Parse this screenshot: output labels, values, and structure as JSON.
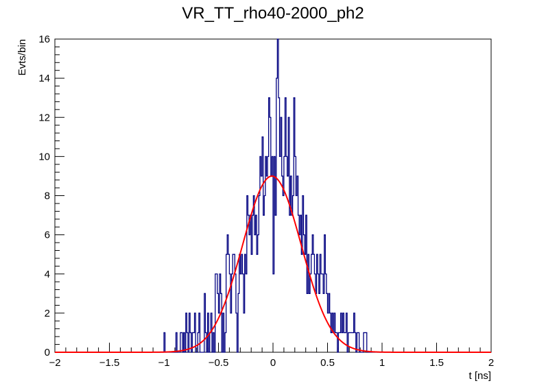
{
  "chart_data": {
    "type": "histogram",
    "title": "VR_TT_rho40-2000_ph2",
    "xlabel": "t [ns]",
    "ylabel": "Evts/bin",
    "xlim": [
      -2,
      2
    ],
    "ylim": [
      0,
      16
    ],
    "x_ticks": [
      -2,
      -1.5,
      -1,
      -0.5,
      0,
      0.5,
      1,
      1.5,
      2
    ],
    "x_tick_labels": [
      "−2",
      "−1.5",
      "−1",
      "−0.5",
      "0",
      "0.5",
      "1",
      "1.5",
      "2"
    ],
    "y_ticks": [
      0,
      2,
      4,
      6,
      8,
      10,
      12,
      14,
      16
    ],
    "y_tick_labels": [
      "0",
      "2",
      "4",
      "6",
      "8",
      "10",
      "12",
      "14",
      "16"
    ],
    "bin_width": 0.01,
    "histogram": {
      "name": "data",
      "color": "#000080",
      "bins": [
        [
          -1.0,
          1
        ],
        [
          -0.89,
          1
        ],
        [
          -0.85,
          1
        ],
        [
          -0.84,
          1
        ],
        [
          -0.82,
          1
        ],
        [
          -0.8,
          2
        ],
        [
          -0.79,
          1
        ],
        [
          -0.77,
          2
        ],
        [
          -0.76,
          1
        ],
        [
          -0.74,
          1
        ],
        [
          -0.73,
          1
        ],
        [
          -0.72,
          2
        ],
        [
          -0.69,
          1
        ],
        [
          -0.68,
          2
        ],
        [
          -0.63,
          3
        ],
        [
          -0.62,
          1
        ],
        [
          -0.6,
          2
        ],
        [
          -0.58,
          1
        ],
        [
          -0.57,
          2
        ],
        [
          -0.55,
          1
        ],
        [
          -0.53,
          4
        ],
        [
          -0.52,
          4
        ],
        [
          -0.51,
          3
        ],
        [
          -0.5,
          2
        ],
        [
          -0.49,
          4
        ],
        [
          -0.48,
          3
        ],
        [
          -0.46,
          2
        ],
        [
          -0.44,
          1
        ],
        [
          -0.43,
          5
        ],
        [
          -0.42,
          6
        ],
        [
          -0.41,
          5
        ],
        [
          -0.4,
          4
        ],
        [
          -0.39,
          2
        ],
        [
          -0.38,
          4
        ],
        [
          -0.37,
          5
        ],
        [
          -0.36,
          5
        ],
        [
          -0.35,
          4
        ],
        [
          -0.34,
          2
        ],
        [
          -0.33,
          0
        ],
        [
          -0.32,
          3
        ],
        [
          -0.31,
          5
        ],
        [
          -0.3,
          4
        ],
        [
          -0.29,
          5
        ],
        [
          -0.28,
          4
        ],
        [
          -0.27,
          2
        ],
        [
          -0.26,
          5
        ],
        [
          -0.25,
          4
        ],
        [
          -0.24,
          8
        ],
        [
          -0.23,
          7
        ],
        [
          -0.22,
          6
        ],
        [
          -0.21,
          7
        ],
        [
          -0.2,
          5
        ],
        [
          -0.19,
          7
        ],
        [
          -0.18,
          8
        ],
        [
          -0.17,
          6
        ],
        [
          -0.16,
          7
        ],
        [
          -0.15,
          5
        ],
        [
          -0.14,
          6
        ],
        [
          -0.13,
          8
        ],
        [
          -0.12,
          10
        ],
        [
          -0.11,
          9
        ],
        [
          -0.1,
          11
        ],
        [
          -0.09,
          7
        ],
        [
          -0.08,
          8
        ],
        [
          -0.07,
          10
        ],
        [
          -0.06,
          9
        ],
        [
          -0.05,
          10
        ],
        [
          -0.04,
          13
        ],
        [
          -0.03,
          12
        ],
        [
          -0.02,
          9
        ],
        [
          -0.01,
          10
        ],
        [
          0.0,
          4
        ],
        [
          0.01,
          10
        ],
        [
          0.02,
          7
        ],
        [
          0.03,
          14
        ],
        [
          0.04,
          16
        ],
        [
          0.05,
          13
        ],
        [
          0.06,
          10
        ],
        [
          0.07,
          12
        ],
        [
          0.08,
          9
        ],
        [
          0.09,
          8
        ],
        [
          0.1,
          10
        ],
        [
          0.11,
          13
        ],
        [
          0.12,
          10
        ],
        [
          0.13,
          9
        ],
        [
          0.14,
          12
        ],
        [
          0.15,
          7
        ],
        [
          0.16,
          9
        ],
        [
          0.17,
          7
        ],
        [
          0.18,
          8
        ],
        [
          0.19,
          13
        ],
        [
          0.2,
          10
        ],
        [
          0.21,
          8
        ],
        [
          0.22,
          9
        ],
        [
          0.23,
          7
        ],
        [
          0.24,
          6
        ],
        [
          0.25,
          7
        ],
        [
          0.26,
          5
        ],
        [
          0.27,
          8
        ],
        [
          0.28,
          6
        ],
        [
          0.29,
          5
        ],
        [
          0.3,
          7
        ],
        [
          0.31,
          3
        ],
        [
          0.32,
          5
        ],
        [
          0.33,
          3
        ],
        [
          0.34,
          4
        ],
        [
          0.35,
          5
        ],
        [
          0.36,
          6
        ],
        [
          0.37,
          5
        ],
        [
          0.38,
          4
        ],
        [
          0.39,
          3
        ],
        [
          0.4,
          5
        ],
        [
          0.41,
          4
        ],
        [
          0.42,
          3
        ],
        [
          0.43,
          5
        ],
        [
          0.44,
          4
        ],
        [
          0.45,
          4
        ],
        [
          0.46,
          3
        ],
        [
          0.47,
          6
        ],
        [
          0.48,
          4
        ],
        [
          0.49,
          3
        ],
        [
          0.5,
          2
        ],
        [
          0.51,
          3
        ],
        [
          0.52,
          2
        ],
        [
          0.53,
          1
        ],
        [
          0.54,
          2
        ],
        [
          0.55,
          1
        ],
        [
          0.56,
          2
        ],
        [
          0.57,
          1
        ],
        [
          0.58,
          1
        ],
        [
          0.59,
          0
        ],
        [
          0.6,
          1
        ],
        [
          0.61,
          1
        ],
        [
          0.62,
          2
        ],
        [
          0.63,
          1
        ],
        [
          0.64,
          2
        ],
        [
          0.65,
          1
        ],
        [
          0.66,
          1
        ],
        [
          0.67,
          2
        ],
        [
          0.68,
          0
        ],
        [
          0.69,
          1
        ],
        [
          0.7,
          1
        ],
        [
          0.71,
          1
        ],
        [
          0.72,
          1
        ],
        [
          0.73,
          1
        ],
        [
          0.74,
          2
        ],
        [
          0.75,
          1
        ],
        [
          0.76,
          0
        ],
        [
          0.77,
          1
        ],
        [
          0.78,
          1
        ],
        [
          0.83,
          1
        ],
        [
          0.84,
          1
        ],
        [
          0.85,
          1
        ]
      ]
    },
    "fit": {
      "name": "gaussian-fit",
      "color": "#ff0000",
      "function": "gaussian",
      "amplitude": 9.0,
      "mean": -0.01,
      "sigma": 0.27
    }
  }
}
